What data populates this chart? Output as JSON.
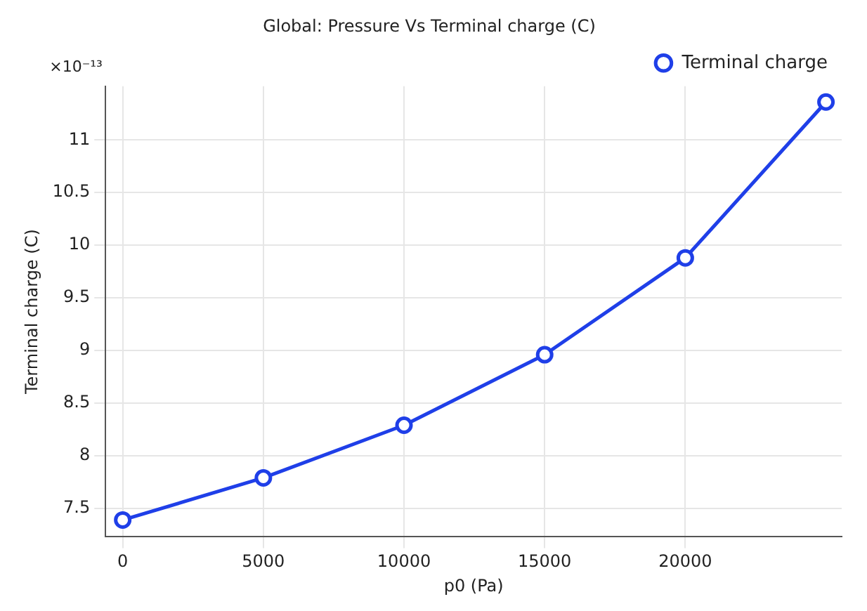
{
  "chart_data": {
    "type": "line",
    "title": "Global: Pressure Vs Terminal charge (C)",
    "xlabel": "p0 (Pa)",
    "ylabel": "Terminal charge (C)",
    "annotations": [
      "×10⁻¹³"
    ],
    "x": [
      0,
      5000,
      10000,
      15000,
      20000,
      25000
    ],
    "series": [
      {
        "name": "Terminal charge",
        "color": "#1f3fe8",
        "values": [
          7.39,
          7.79,
          8.29,
          8.96,
          9.88,
          11.36
        ]
      }
    ],
    "xlim": [
      -610,
      25560
    ],
    "xticks": [
      0,
      5000,
      10000,
      15000,
      20000
    ],
    "ylim": [
      7.23,
      11.51
    ],
    "yticks": [
      7.5,
      8,
      8.5,
      9,
      9.5,
      10,
      10.5,
      11
    ],
    "grid": true,
    "legend": "top right",
    "marker": "circle",
    "line_style": "solid"
  }
}
